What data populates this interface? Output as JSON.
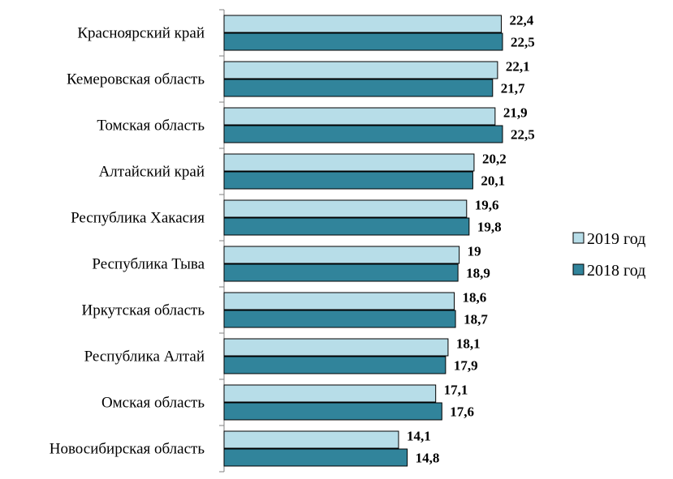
{
  "chart_data": {
    "type": "bar",
    "orientation": "horizontal",
    "categories": [
      "Красноярский край",
      "Кемеровская область",
      "Томская область",
      "Алтайский край",
      "Республика Хакасия",
      "Республика Тыва",
      "Иркутская область",
      "Республика Алтай",
      "Омская область",
      "Новосибирская область"
    ],
    "series": [
      {
        "name": "2019 год",
        "color": "#b7dde8",
        "values": [
          22.4,
          22.1,
          21.9,
          20.2,
          19.6,
          19,
          18.6,
          18.1,
          17.1,
          14.1
        ],
        "labels": [
          "22,4",
          "22,1",
          "21,9",
          "20,2",
          "19,6",
          "19",
          "18,6",
          "18,1",
          "17,1",
          "14,1"
        ]
      },
      {
        "name": "2018 год",
        "color": "#31849b",
        "values": [
          22.5,
          21.7,
          22.5,
          20.1,
          19.8,
          18.9,
          18.7,
          17.9,
          17.6,
          14.8
        ],
        "labels": [
          "22,5",
          "21,7",
          "22,5",
          "20,1",
          "19,8",
          "18,9",
          "18,7",
          "17,9",
          "17,6",
          "14,8"
        ]
      }
    ],
    "title": "",
    "xlabel": "",
    "ylabel": "",
    "xlim": [
      0,
      22.5
    ],
    "grid": false,
    "legend_position": "right",
    "data_labels": true
  }
}
